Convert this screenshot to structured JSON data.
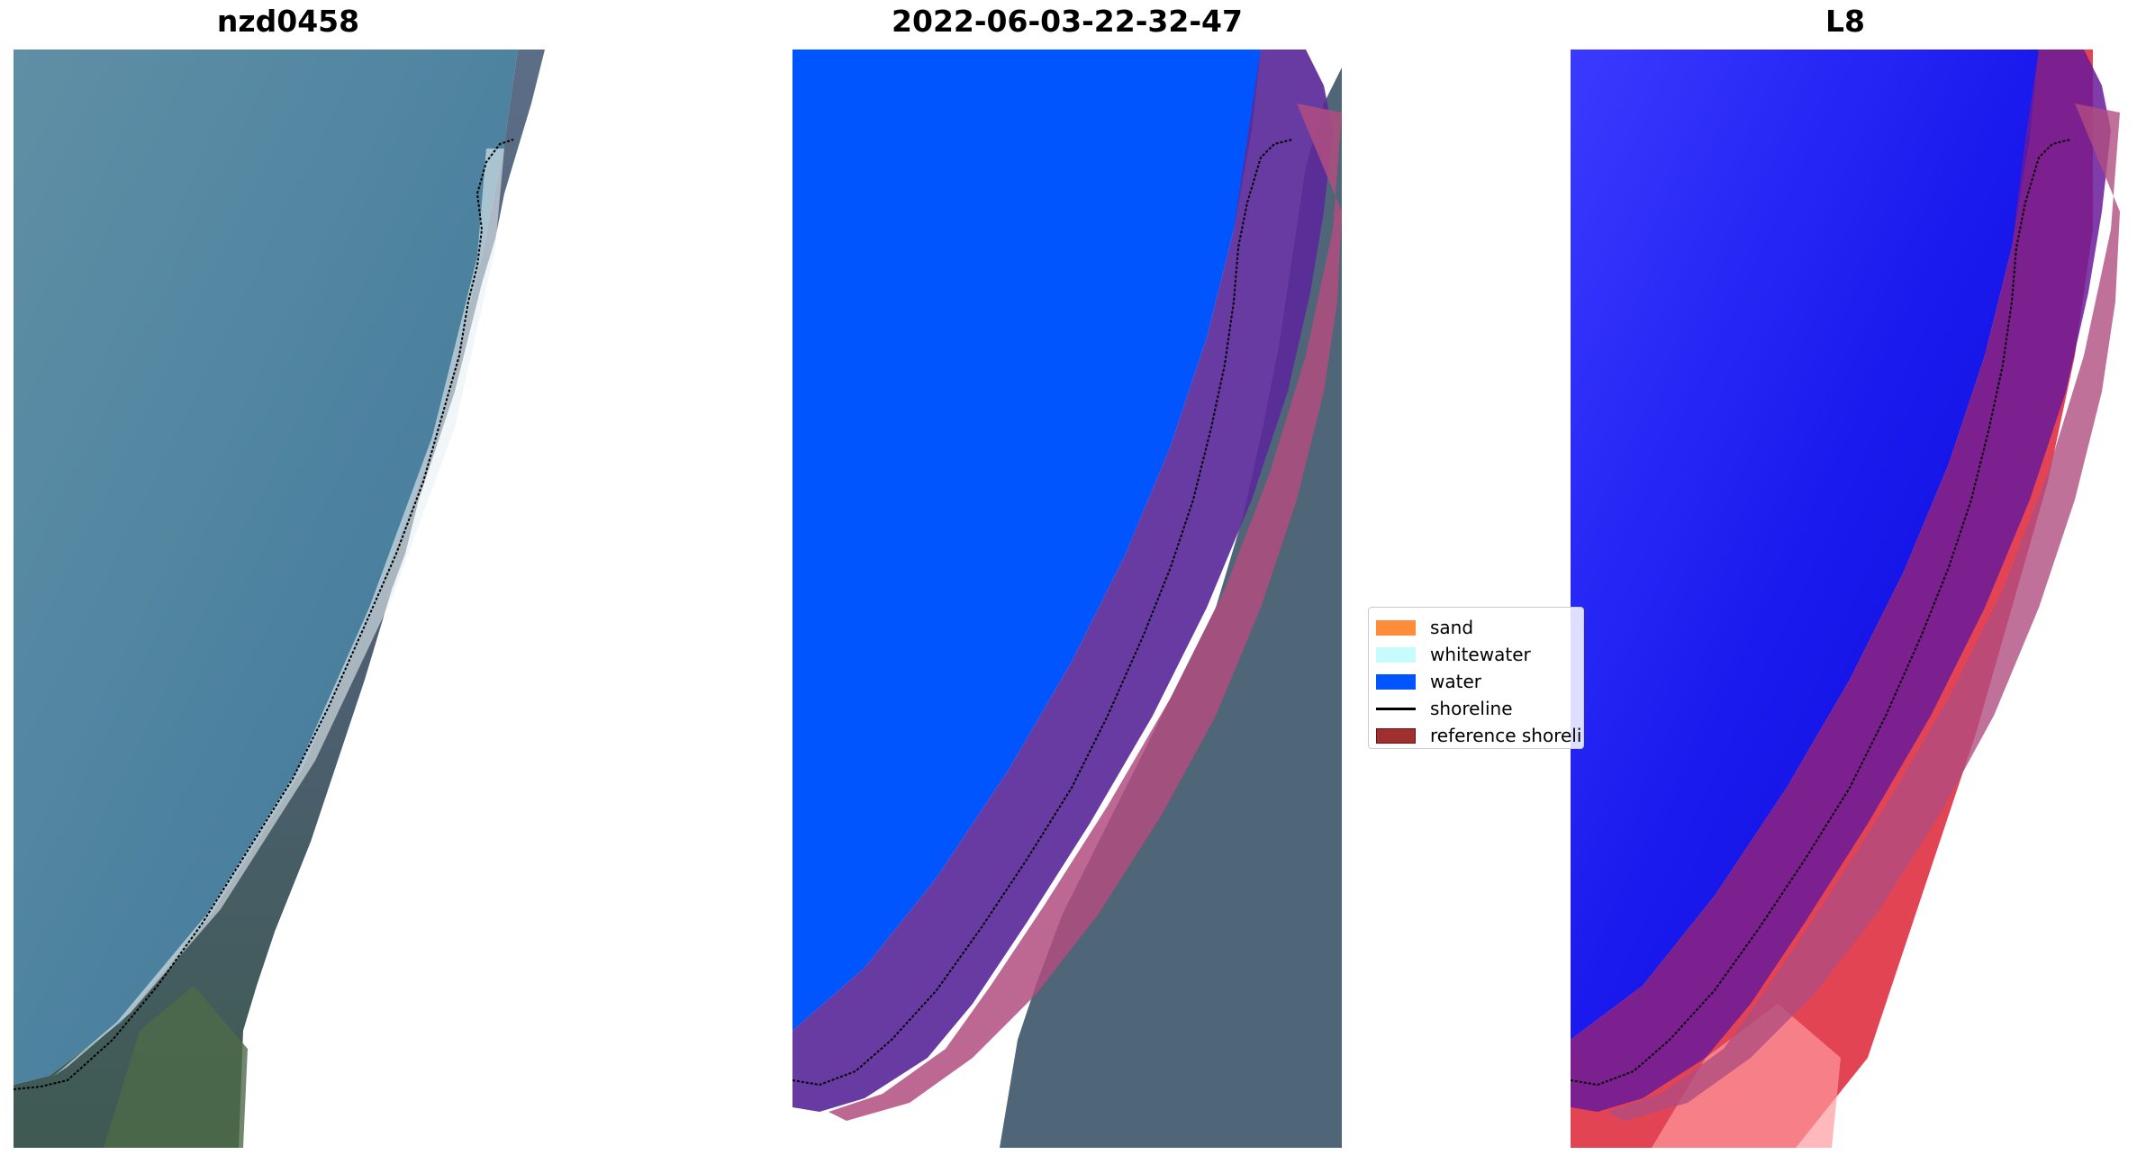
{
  "panels": [
    {
      "title": "nzd0458",
      "icon": "rgb-satellite-image"
    },
    {
      "title": "2022-06-03-22-32-47",
      "icon": "classified-image"
    },
    {
      "title": "L8",
      "icon": "water-index-image"
    }
  ],
  "legend": {
    "items": [
      {
        "label": "sand",
        "color": "#ff8c3a"
      },
      {
        "label": "whitewater",
        "color": "#c8fcfc"
      },
      {
        "label": "water",
        "color": "#0055ff"
      },
      {
        "label": "shoreline",
        "color": "#000000"
      },
      {
        "label": "reference shoreline buffer",
        "color": "#a03030"
      }
    ]
  }
}
